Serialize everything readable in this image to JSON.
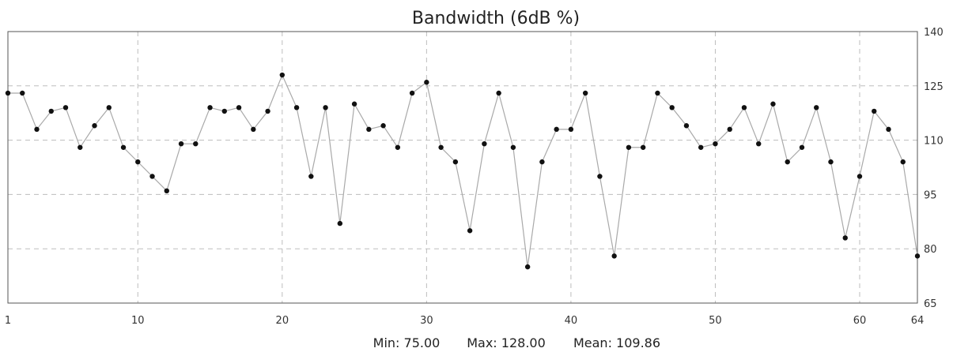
{
  "chart_data": {
    "type": "line",
    "title": "Bandwidth (6dB %)",
    "xlabel": "",
    "ylabel": "",
    "xlim": [
      1,
      64
    ],
    "ylim": [
      65,
      140
    ],
    "x_ticks": [
      1,
      10,
      20,
      30,
      40,
      50,
      60,
      64
    ],
    "y_ticks": [
      65,
      80,
      95,
      110,
      125,
      140
    ],
    "y_axis_side": "right",
    "grid": true,
    "series": [
      {
        "x": [
          1,
          2,
          3,
          4,
          5,
          6,
          7,
          8,
          9,
          10,
          11,
          12,
          13,
          14,
          15,
          16,
          17,
          18,
          19,
          20,
          21,
          22,
          23,
          24,
          25,
          26,
          27,
          28,
          29,
          30,
          31,
          32,
          33,
          34,
          35,
          36,
          37,
          38,
          39,
          40,
          41,
          42,
          43,
          44,
          45,
          46,
          47,
          48,
          49,
          50,
          51,
          52,
          53,
          54,
          55,
          56,
          57,
          58,
          59,
          60,
          61,
          62,
          63,
          64
        ],
        "values": [
          123,
          123,
          113,
          118,
          119,
          108,
          114,
          119,
          108,
          104,
          100,
          96,
          109,
          109,
          119,
          118,
          119,
          113,
          118,
          128,
          119,
          100,
          119,
          87,
          120,
          113,
          114,
          108,
          123,
          126,
          108,
          104,
          85,
          109,
          123,
          108,
          75,
          104,
          113,
          113,
          123,
          100,
          78,
          108,
          108,
          123,
          119,
          114,
          108,
          109,
          113,
          119,
          109,
          120,
          104,
          108,
          119,
          104,
          83,
          100,
          118,
          113,
          104,
          78
        ]
      }
    ]
  },
  "stats": {
    "min": "Min: 75.00",
    "max": "Max: 128.00",
    "mean": "Mean: 109.86"
  }
}
